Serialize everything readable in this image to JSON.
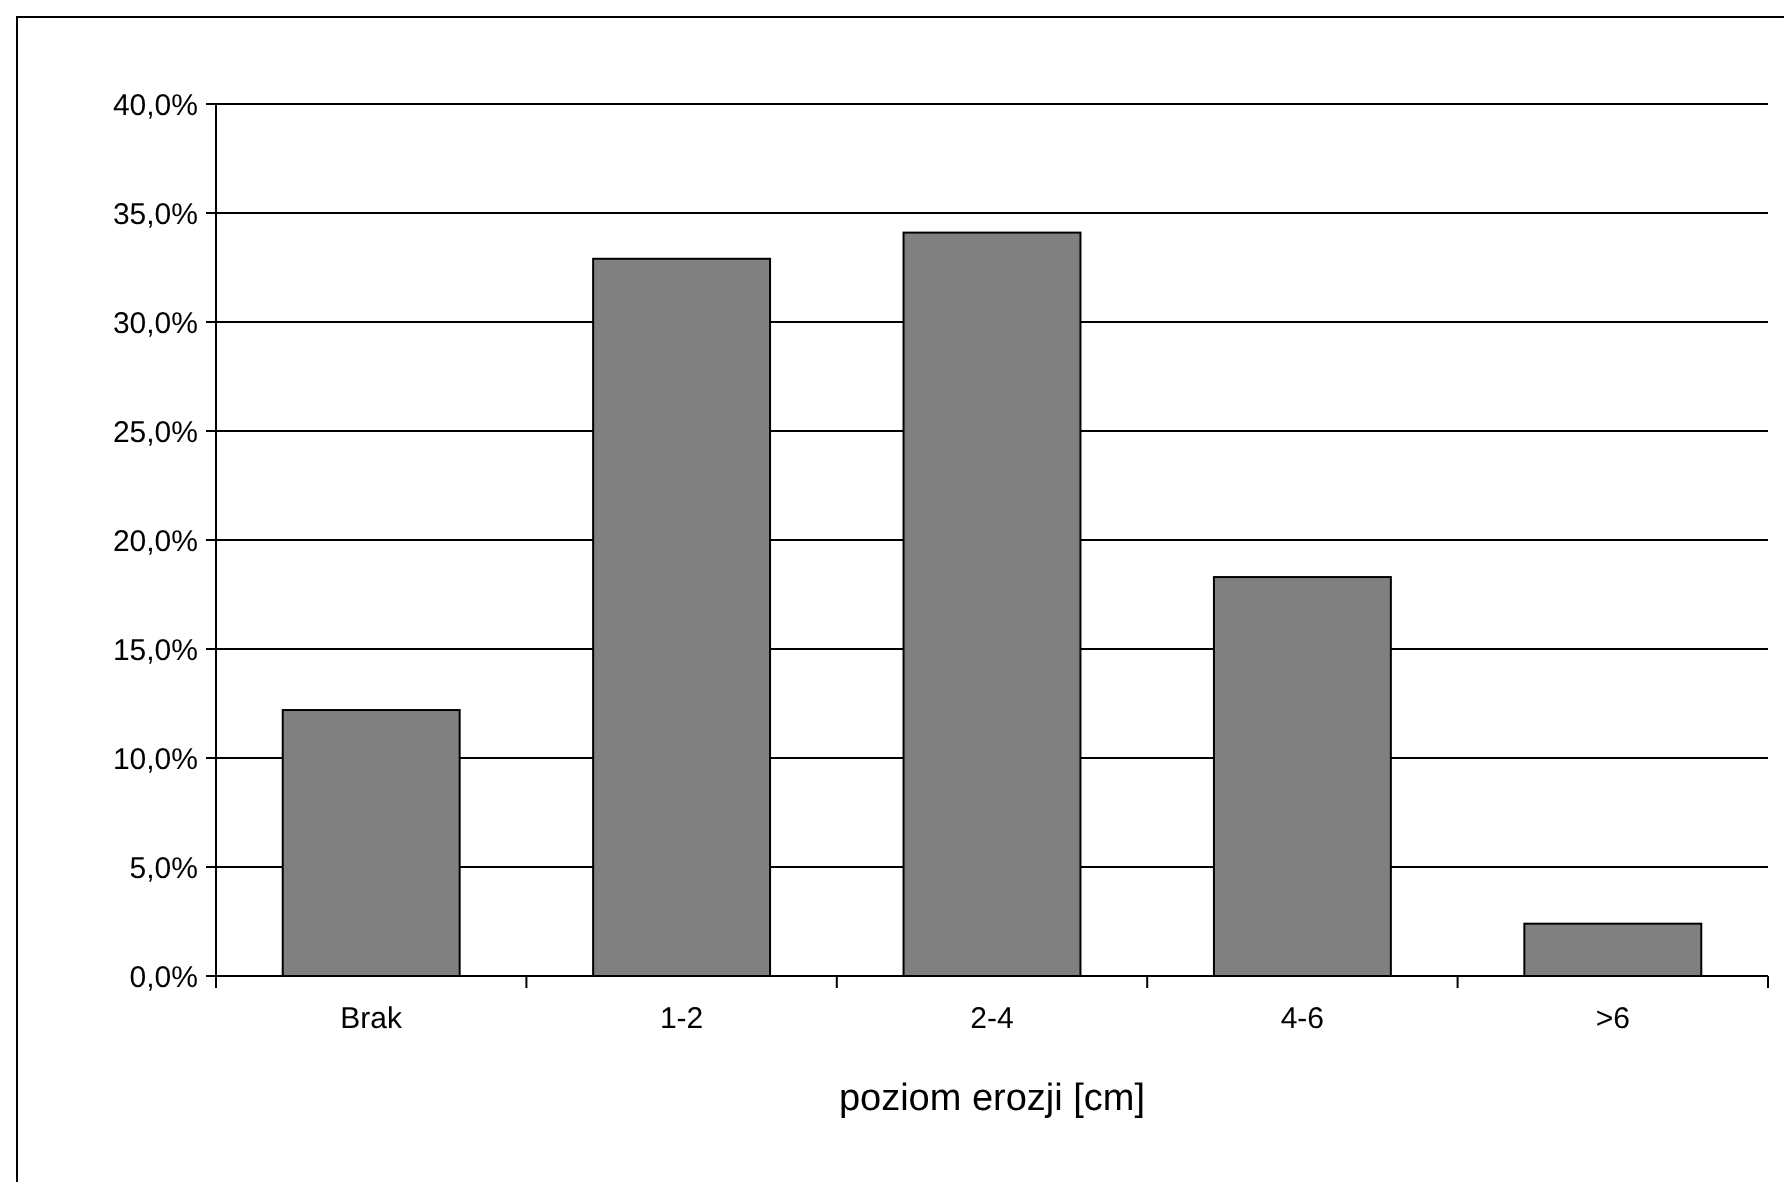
{
  "chart_data": {
    "type": "bar",
    "xlabel": "poziom erozji [cm]",
    "categories": [
      "Brak",
      "1-2",
      "2-4",
      "4-6",
      ">6"
    ],
    "values": [
      12.2,
      32.9,
      34.1,
      18.3,
      2.4
    ],
    "color": "#808080",
    "ylim": [
      0,
      40
    ],
    "yticks": [
      {
        "value": 0,
        "label": "0,0%"
      },
      {
        "value": 5,
        "label": "5,0%"
      },
      {
        "value": 10,
        "label": "10,0%"
      },
      {
        "value": 15,
        "label": "15,0%"
      },
      {
        "value": 20,
        "label": "20,0%"
      },
      {
        "value": 25,
        "label": "25,0%"
      },
      {
        "value": 30,
        "label": "30,0%"
      },
      {
        "value": 35,
        "label": "35,0%"
      },
      {
        "value": 40,
        "label": "40,0%"
      }
    ],
    "grid": "y"
  }
}
